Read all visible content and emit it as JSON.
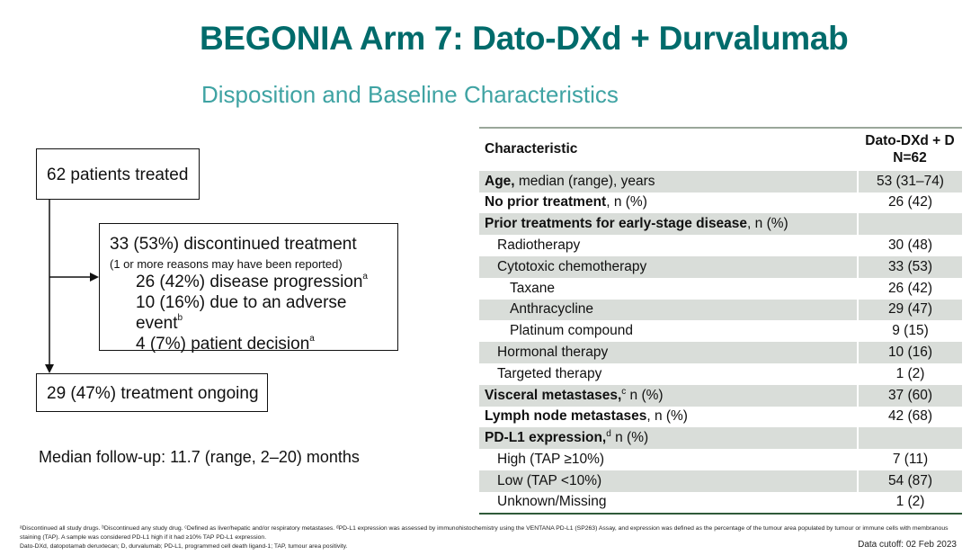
{
  "title": "BEGONIA Arm 7: Dato-DXd + Durvalumab",
  "subtitle": "Disposition and Baseline Characteristics",
  "flow": {
    "treated": "62 patients treated",
    "discontinued": "33 (53%) discontinued treatment",
    "discontinued_note": "(1 or more reasons may have been reported)",
    "reasons": [
      {
        "text": "26 (42%) disease progression",
        "sup": "a"
      },
      {
        "text": "10 (16%) due to an adverse event",
        "sup": "b"
      },
      {
        "text": "4 (7%) patient decision",
        "sup": "a"
      }
    ],
    "ongoing": "29 (47%) treatment ongoing"
  },
  "followup": "Median follow-up: 11.7 (range, 2–20) months",
  "table": {
    "header": {
      "characteristic": "Characteristic",
      "arm": "Dato-DXd + D",
      "n": "N=62"
    },
    "rows": [
      {
        "bold": "Age,",
        "rest": " median (range), years",
        "value": "53 (31–74)",
        "level": 0
      },
      {
        "bold": "No prior treatment",
        "rest": ", n (%)",
        "value": "26 (42)",
        "level": 0
      },
      {
        "bold": "Prior treatments for early-stage disease",
        "rest": ", n (%)",
        "value": "",
        "level": 0
      },
      {
        "bold": "",
        "rest": "Radiotherapy",
        "value": "30 (48)",
        "level": 1
      },
      {
        "bold": "",
        "rest": "Cytotoxic chemotherapy",
        "value": "33 (53)",
        "level": 1
      },
      {
        "bold": "",
        "rest": "Taxane",
        "value": "26 (42)",
        "level": 2
      },
      {
        "bold": "",
        "rest": "Anthracycline",
        "value": "29 (47)",
        "level": 2
      },
      {
        "bold": "",
        "rest": "Platinum compound",
        "value": "9 (15)",
        "level": 2
      },
      {
        "bold": "",
        "rest": "Hormonal therapy",
        "value": "10 (16)",
        "level": 1
      },
      {
        "bold": "",
        "rest": "Targeted therapy",
        "value": "1 (2)",
        "level": 1
      },
      {
        "bold": "Visceral metastases,",
        "sup": "c",
        "rest": " n (%)",
        "value": "37 (60)",
        "level": 0
      },
      {
        "bold": "Lymph node metastases",
        "rest": ", n (%)",
        "value": "42 (68)",
        "level": 0
      },
      {
        "bold": "PD-L1 expression,",
        "sup": "d",
        "rest": " n (%)",
        "value": "",
        "level": 0
      },
      {
        "bold": "",
        "rest": "High (TAP ≥10%)",
        "value": "7 (11)",
        "level": 1
      },
      {
        "bold": "",
        "rest": "Low (TAP <10%)",
        "value": "54 (87)",
        "level": 1
      },
      {
        "bold": "",
        "rest": "Unknown/Missing",
        "value": "1 (2)",
        "level": 1
      }
    ]
  },
  "footnotes": {
    "line1": "ᵃDiscontinued all study drugs. ᵇDiscontinued any study drug. ᶜDefined as liver/hepatic and/or respiratory metastases. ᵈPD-L1 expression was assessed by immunohistochemistry using the VENTANA PD-L1 (SP263) Assay, and expression was defined as the percentage of the tumour area populated by tumour or immune cells with membranous staining (TAP). A sample was considered PD-L1 high if it had ≥10% TAP PD-L1 expression.",
    "line2": "Dato-DXd, datopotamab deruxtecan; D, durvalumab; PD-L1, programmed cell death ligand-1; TAP, tumour area positivity."
  },
  "cutoff": "Data cutoff: 02 Feb 2023",
  "colors": {
    "title": "#006b6b",
    "subtitle": "#3fa3a3",
    "row_shade": "#d9ddd9"
  }
}
